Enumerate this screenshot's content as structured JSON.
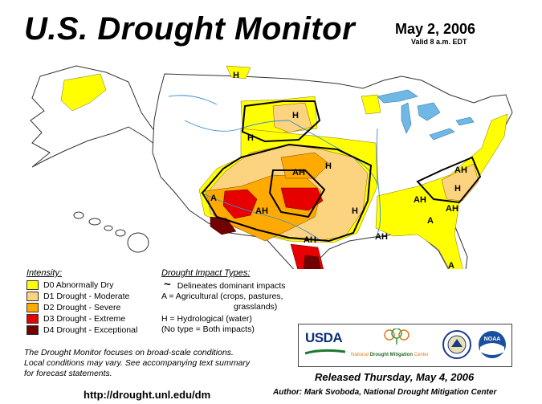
{
  "header": {
    "title": "U.S. Drought Monitor",
    "date": "May 2, 2006",
    "valid": "Valid 8 a.m. EDT"
  },
  "colors": {
    "d0": "#ffff00",
    "d1": "#fcd37f",
    "d2": "#ffaa00",
    "d3": "#e60000",
    "d4": "#730000",
    "water": "#6fb8e6"
  },
  "intensity": {
    "heading": "Intensity:",
    "items": [
      {
        "label": "D0 Abnormally Dry",
        "color": "#ffff00"
      },
      {
        "label": "D1 Drought - Moderate",
        "color": "#fcd37f"
      },
      {
        "label": "D2 Drought - Severe",
        "color": "#ffaa00"
      },
      {
        "label": "D3 Drought - Extreme",
        "color": "#e60000"
      },
      {
        "label": "D4 Drought - Exceptional",
        "color": "#730000"
      }
    ]
  },
  "impact": {
    "heading": "Drought Impact Types:",
    "line_symbol": "~",
    "line_label": "Delineates dominant impacts",
    "a_line1": "A = Agricultural (crops, pastures,",
    "a_line2": "grasslands)",
    "h_line": "H = Hydrological (water)",
    "none_line": "(No type = Both impacts)"
  },
  "map_labels": [
    "H",
    "H",
    "H",
    "H",
    "AH",
    "A",
    "AH",
    "AH",
    "H",
    "AH",
    "AH",
    "A",
    "AH",
    "H",
    "AH",
    "A"
  ],
  "note": {
    "line1": "The Drought Monitor focuses on broad-scale conditions.",
    "line2": "Local conditions may vary.  See accompanying text summary",
    "line3": "for forecast statements."
  },
  "logos": {
    "usda": "USDA",
    "ndmc_prefix": "National",
    "ndmc_middle": "Drought Mitigation",
    "ndmc_suffix": "Center",
    "noaa": "NOAA"
  },
  "footer": {
    "url": "http://drought.unl.edu/dm",
    "released": "Released Thursday, May 4, 2006",
    "author": "Author:  Mark Svoboda, National Drought Mitigation Center"
  }
}
